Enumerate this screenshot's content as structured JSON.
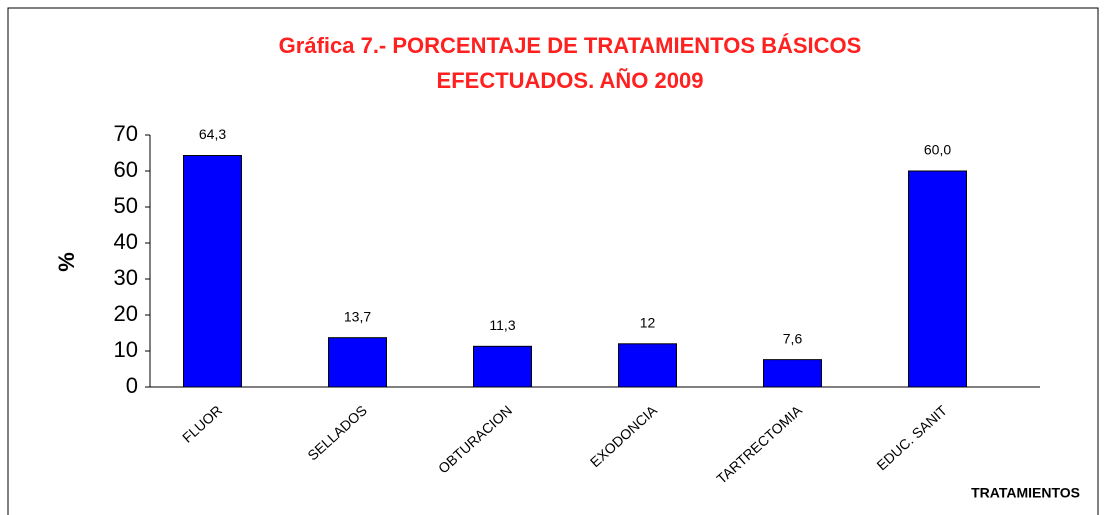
{
  "chart_data": {
    "type": "bar",
    "title": [
      "Gráfica 7.- PORCENTAJE DE TRATAMIENTOS BÁSICOS",
      "EFECTUADOS. AÑO 2009"
    ],
    "y_label": "%",
    "x_label": "TRATAMIENTOS",
    "categories": [
      "FLUOR",
      "SELLADOS",
      "OBTURACION",
      "EXODONCIA",
      "TARTRECTOMIA",
      "EDUC. SANIT"
    ],
    "values": [
      64.3,
      13.7,
      11.3,
      12,
      7.6,
      60.0
    ],
    "value_labels": [
      "64,3",
      "13,7",
      "11,3",
      "12",
      "7,6",
      "60,0"
    ],
    "color": "#0000ff",
    "ylim": [
      0,
      70
    ],
    "yticks": [
      0,
      10,
      20,
      30,
      40,
      50,
      60,
      70
    ],
    "grid": false
  }
}
